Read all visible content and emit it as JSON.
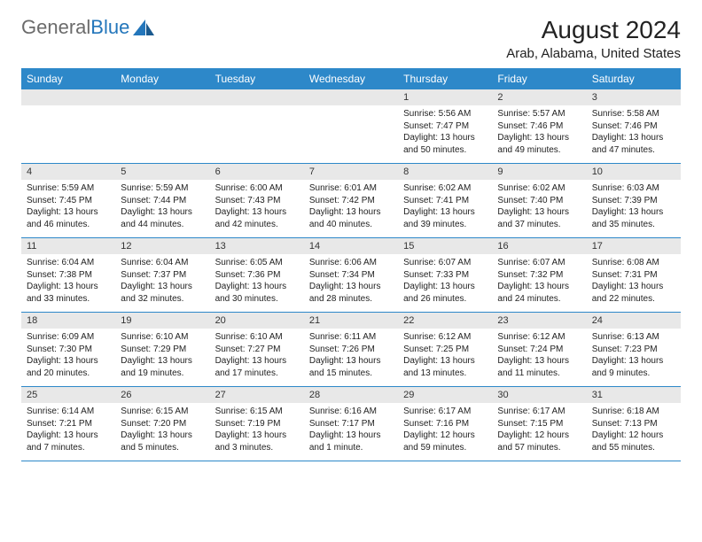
{
  "brand": {
    "text1": "General",
    "text2": "Blue"
  },
  "title": "August 2024",
  "location": "Arab, Alabama, United States",
  "colors": {
    "header_bg": "#2d88c9",
    "header_fg": "#ffffff",
    "daynum_bg": "#e8e8e8",
    "border": "#2d88c9",
    "brand_gray": "#6b6b6b",
    "brand_blue": "#2376bb"
  },
  "weekdays": [
    "Sunday",
    "Monday",
    "Tuesday",
    "Wednesday",
    "Thursday",
    "Friday",
    "Saturday"
  ],
  "weeks": [
    [
      null,
      null,
      null,
      null,
      {
        "n": "1",
        "sr": "5:56 AM",
        "ss": "7:47 PM",
        "dl": "13 hours and 50 minutes."
      },
      {
        "n": "2",
        "sr": "5:57 AM",
        "ss": "7:46 PM",
        "dl": "13 hours and 49 minutes."
      },
      {
        "n": "3",
        "sr": "5:58 AM",
        "ss": "7:46 PM",
        "dl": "13 hours and 47 minutes."
      }
    ],
    [
      {
        "n": "4",
        "sr": "5:59 AM",
        "ss": "7:45 PM",
        "dl": "13 hours and 46 minutes."
      },
      {
        "n": "5",
        "sr": "5:59 AM",
        "ss": "7:44 PM",
        "dl": "13 hours and 44 minutes."
      },
      {
        "n": "6",
        "sr": "6:00 AM",
        "ss": "7:43 PM",
        "dl": "13 hours and 42 minutes."
      },
      {
        "n": "7",
        "sr": "6:01 AM",
        "ss": "7:42 PM",
        "dl": "13 hours and 40 minutes."
      },
      {
        "n": "8",
        "sr": "6:02 AM",
        "ss": "7:41 PM",
        "dl": "13 hours and 39 minutes."
      },
      {
        "n": "9",
        "sr": "6:02 AM",
        "ss": "7:40 PM",
        "dl": "13 hours and 37 minutes."
      },
      {
        "n": "10",
        "sr": "6:03 AM",
        "ss": "7:39 PM",
        "dl": "13 hours and 35 minutes."
      }
    ],
    [
      {
        "n": "11",
        "sr": "6:04 AM",
        "ss": "7:38 PM",
        "dl": "13 hours and 33 minutes."
      },
      {
        "n": "12",
        "sr": "6:04 AM",
        "ss": "7:37 PM",
        "dl": "13 hours and 32 minutes."
      },
      {
        "n": "13",
        "sr": "6:05 AM",
        "ss": "7:36 PM",
        "dl": "13 hours and 30 minutes."
      },
      {
        "n": "14",
        "sr": "6:06 AM",
        "ss": "7:34 PM",
        "dl": "13 hours and 28 minutes."
      },
      {
        "n": "15",
        "sr": "6:07 AM",
        "ss": "7:33 PM",
        "dl": "13 hours and 26 minutes."
      },
      {
        "n": "16",
        "sr": "6:07 AM",
        "ss": "7:32 PM",
        "dl": "13 hours and 24 minutes."
      },
      {
        "n": "17",
        "sr": "6:08 AM",
        "ss": "7:31 PM",
        "dl": "13 hours and 22 minutes."
      }
    ],
    [
      {
        "n": "18",
        "sr": "6:09 AM",
        "ss": "7:30 PM",
        "dl": "13 hours and 20 minutes."
      },
      {
        "n": "19",
        "sr": "6:10 AM",
        "ss": "7:29 PM",
        "dl": "13 hours and 19 minutes."
      },
      {
        "n": "20",
        "sr": "6:10 AM",
        "ss": "7:27 PM",
        "dl": "13 hours and 17 minutes."
      },
      {
        "n": "21",
        "sr": "6:11 AM",
        "ss": "7:26 PM",
        "dl": "13 hours and 15 minutes."
      },
      {
        "n": "22",
        "sr": "6:12 AM",
        "ss": "7:25 PM",
        "dl": "13 hours and 13 minutes."
      },
      {
        "n": "23",
        "sr": "6:12 AM",
        "ss": "7:24 PM",
        "dl": "13 hours and 11 minutes."
      },
      {
        "n": "24",
        "sr": "6:13 AM",
        "ss": "7:23 PM",
        "dl": "13 hours and 9 minutes."
      }
    ],
    [
      {
        "n": "25",
        "sr": "6:14 AM",
        "ss": "7:21 PM",
        "dl": "13 hours and 7 minutes."
      },
      {
        "n": "26",
        "sr": "6:15 AM",
        "ss": "7:20 PM",
        "dl": "13 hours and 5 minutes."
      },
      {
        "n": "27",
        "sr": "6:15 AM",
        "ss": "7:19 PM",
        "dl": "13 hours and 3 minutes."
      },
      {
        "n": "28",
        "sr": "6:16 AM",
        "ss": "7:17 PM",
        "dl": "13 hours and 1 minute."
      },
      {
        "n": "29",
        "sr": "6:17 AM",
        "ss": "7:16 PM",
        "dl": "12 hours and 59 minutes."
      },
      {
        "n": "30",
        "sr": "6:17 AM",
        "ss": "7:15 PM",
        "dl": "12 hours and 57 minutes."
      },
      {
        "n": "31",
        "sr": "6:18 AM",
        "ss": "7:13 PM",
        "dl": "12 hours and 55 minutes."
      }
    ]
  ],
  "labels": {
    "sunrise": "Sunrise:",
    "sunset": "Sunset:",
    "daylight": "Daylight:"
  }
}
